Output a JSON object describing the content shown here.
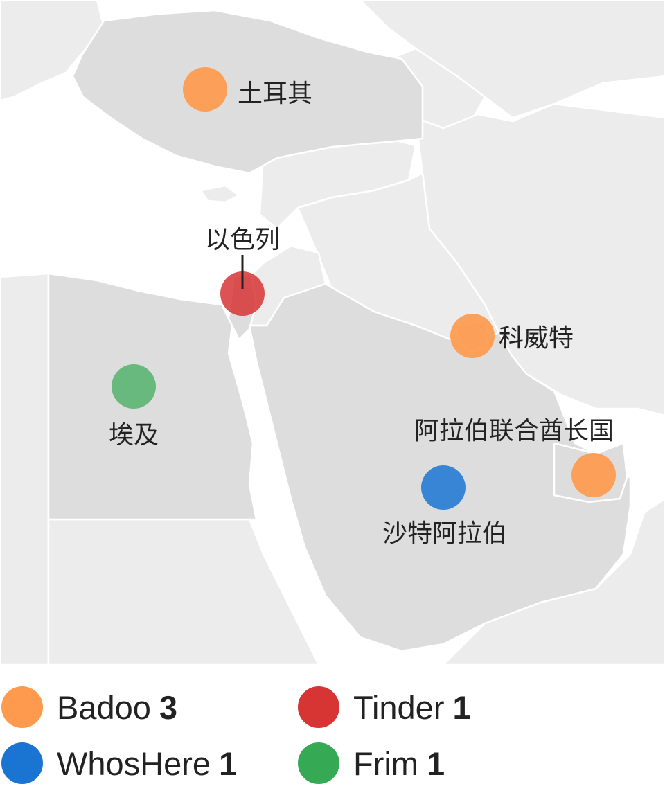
{
  "map": {
    "countries": [
      {
        "id": "turkey",
        "label": "土耳其",
        "app": "Badoo"
      },
      {
        "id": "israel",
        "label": "以色列",
        "app": "Tinder"
      },
      {
        "id": "kuwait",
        "label": "科威特",
        "app": "Badoo"
      },
      {
        "id": "egypt",
        "label": "埃及",
        "app": "Frim"
      },
      {
        "id": "uae",
        "label": "阿拉伯联合酋长国",
        "app": "Badoo"
      },
      {
        "id": "saudi-arabia",
        "label": "沙特阿拉伯",
        "app": "WhosHere"
      }
    ]
  },
  "legend": [
    {
      "name": "Badoo",
      "count": "3",
      "color": "#fe9a4d"
    },
    {
      "name": "Tinder",
      "count": "1",
      "color": "#d73434"
    },
    {
      "name": "WhosHere",
      "count": "1",
      "color": "#1a75d2"
    },
    {
      "name": "Frim",
      "count": "1",
      "color": "#36a954"
    }
  ],
  "colors": {
    "highlighted_land": "#dddddd",
    "other_land": "#ececec",
    "water": "#ffffff",
    "borders": "#ffffff"
  }
}
